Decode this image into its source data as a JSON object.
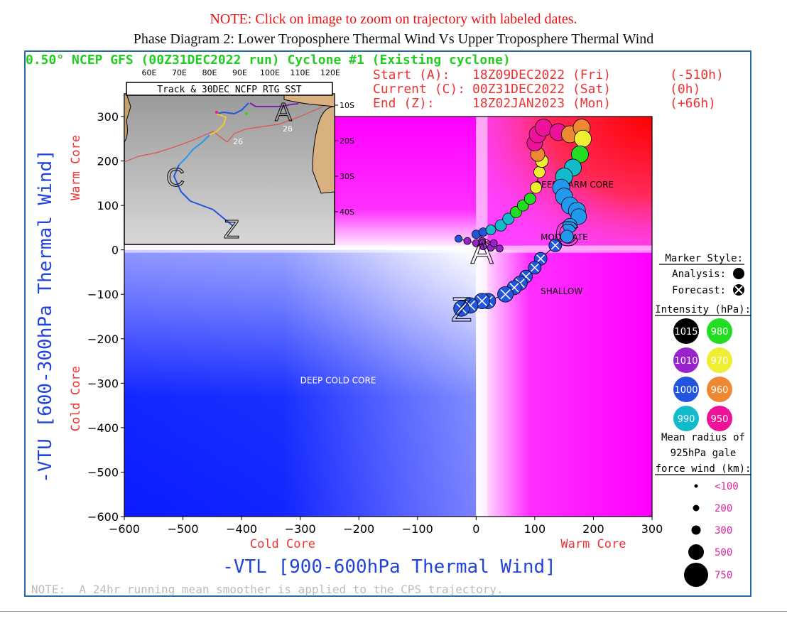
{
  "header": {
    "note": "NOTE: Click on image to zoom on trajectory with labeled dates.",
    "title": "Phase Diagram 2: Lower Troposphere Thermal Wind Vs Upper Troposphere Thermal Wind"
  },
  "run_line": "0.50° NCEP GFS (00Z31DEC2022 run) Cyclone #1 (Existing cyclone)",
  "times": [
    {
      "label": "Start (A):",
      "date": "18Z09DEC2022 (Fri)",
      "offset": "(-510h)"
    },
    {
      "label": "Current (C):",
      "date": "00Z31DEC2022 (Sat)",
      "offset": "(0h)"
    },
    {
      "label": "End (Z):",
      "date": "18Z02JAN2023 (Mon)",
      "offset": "(+66h)"
    }
  ],
  "inset": {
    "title": "Track & 30DEC NCFP RTG SST",
    "lon_labels": [
      "60E",
      "70E",
      "80E",
      "90E",
      "100E",
      "110E",
      "120E"
    ],
    "lat_labels": [
      "10S",
      "20S",
      "30S",
      "40S"
    ],
    "sst_labels": [
      "26",
      "26"
    ],
    "letters": [
      "A",
      "C",
      "Z"
    ]
  },
  "legend": {
    "marker_style_title": "Marker Style:",
    "analysis_label": "Analysis:",
    "forecast_label": "Forecast:",
    "intensity_title": "Intensity (hPa):",
    "intensity": [
      {
        "value": "1015",
        "color": "#000000"
      },
      {
        "value": "980",
        "color": "#22dd22"
      },
      {
        "value": "1010",
        "color": "#9922cc"
      },
      {
        "value": "970",
        "color": "#eeee33"
      },
      {
        "value": "1000",
        "color": "#2255dd"
      },
      {
        "value": "960",
        "color": "#ee8833"
      },
      {
        "value": "990",
        "color": "#11bbcc"
      },
      {
        "value": "950",
        "color": "#ee1199"
      }
    ],
    "radius_title_1": "Mean radius of",
    "radius_title_2": "925hPa gale",
    "radius_title_3": "force wind (km):",
    "radius": [
      "<100",
      "200",
      "300",
      "500",
      "750"
    ]
  },
  "footer_note": "NOTE:  A 24hr running mean smoother is applied to the CPS trajectory.",
  "chart_data": {
    "type": "scatter",
    "xlabel": "-VTL [900-600hPa Thermal Wind]",
    "ylabel": "-VTU [600-300hPa Thermal Wind]",
    "xlim": [
      -600,
      300
    ],
    "ylim": [
      -600,
      300
    ],
    "x_ticks": [
      -600,
      -500,
      -400,
      -300,
      -200,
      -100,
      0,
      100,
      200,
      300
    ],
    "y_ticks": [
      -600,
      -500,
      -400,
      -300,
      -200,
      -100,
      0,
      100,
      200,
      300
    ],
    "x_side_labels": [
      "Cold Core",
      "Warm Core"
    ],
    "y_side_labels": [
      "Cold Core",
      "Warm Core"
    ],
    "regions": [
      "DEEP WARM CORE",
      "MODERATE",
      "SHALLOW",
      "DEEP COLD CORE"
    ],
    "track_letters": [
      "A",
      "C",
      "Z"
    ],
    "trajectory": [
      {
        "x": -30,
        "y": 25,
        "r": 5,
        "c": "#2255dd",
        "t": "a"
      },
      {
        "x": -15,
        "y": 20,
        "r": 5,
        "c": "#9922cc",
        "t": "a"
      },
      {
        "x": 0,
        "y": 15,
        "r": 5,
        "c": "#9922cc",
        "t": "a"
      },
      {
        "x": 12,
        "y": 8,
        "r": 5,
        "c": "#9922cc",
        "t": "a"
      },
      {
        "x": 25,
        "y": 5,
        "r": 5,
        "c": "#9922cc",
        "t": "a"
      },
      {
        "x": 40,
        "y": 3,
        "r": 5,
        "c": "#9922cc",
        "t": "a"
      },
      {
        "x": 10,
        "y": 20,
        "r": 5,
        "c": "#9922cc",
        "t": "a"
      },
      {
        "x": 30,
        "y": 15,
        "r": 5,
        "c": "#9922cc",
        "t": "a"
      },
      {
        "x": 0,
        "y": 35,
        "r": 6,
        "c": "#2255dd",
        "t": "a"
      },
      {
        "x": 12,
        "y": 40,
        "r": 6,
        "c": "#2255dd",
        "t": "a"
      },
      {
        "x": 25,
        "y": 45,
        "r": 7,
        "c": "#11bbcc",
        "t": "a"
      },
      {
        "x": 42,
        "y": 55,
        "r": 8,
        "c": "#11bbcc",
        "t": "a"
      },
      {
        "x": 55,
        "y": 70,
        "r": 8,
        "c": "#11bbcc",
        "t": "a"
      },
      {
        "x": 68,
        "y": 85,
        "r": 8,
        "c": "#22dd22",
        "t": "a"
      },
      {
        "x": 80,
        "y": 100,
        "r": 8,
        "c": "#22dd22",
        "t": "a"
      },
      {
        "x": 92,
        "y": 115,
        "r": 8,
        "c": "#22dd22",
        "t": "a"
      },
      {
        "x": 102,
        "y": 140,
        "r": 8,
        "c": "#eeee33",
        "t": "a"
      },
      {
        "x": 108,
        "y": 175,
        "r": 8,
        "c": "#eeee33",
        "t": "a"
      },
      {
        "x": 112,
        "y": 200,
        "r": 9,
        "c": "#eeee33",
        "t": "a"
      },
      {
        "x": 105,
        "y": 215,
        "r": 10,
        "c": "#ee8833",
        "t": "a"
      },
      {
        "x": 100,
        "y": 240,
        "r": 11,
        "c": "#ee1199",
        "t": "a"
      },
      {
        "x": 105,
        "y": 260,
        "r": 12,
        "c": "#ee1199",
        "t": "a"
      },
      {
        "x": 115,
        "y": 275,
        "r": 12,
        "c": "#ee1199",
        "t": "a"
      },
      {
        "x": 140,
        "y": 265,
        "r": 12,
        "c": "#ee1199",
        "t": "a"
      },
      {
        "x": 160,
        "y": 260,
        "r": 12,
        "c": "#ee8833",
        "t": "a"
      },
      {
        "x": 180,
        "y": 275,
        "r": 12,
        "c": "#ee8833",
        "t": "a"
      },
      {
        "x": 182,
        "y": 250,
        "r": 12,
        "c": "#eeee33",
        "t": "a"
      },
      {
        "x": 177,
        "y": 215,
        "r": 12,
        "c": "#22dd22",
        "t": "a"
      },
      {
        "x": 165,
        "y": 185,
        "r": 12,
        "c": "#11bbcc",
        "t": "a"
      },
      {
        "x": 150,
        "y": 165,
        "r": 12,
        "c": "#11bbcc",
        "t": "a"
      },
      {
        "x": 145,
        "y": 140,
        "r": 12,
        "c": "#2299ee",
        "t": "a"
      },
      {
        "x": 150,
        "y": 120,
        "r": 12,
        "c": "#2299ee",
        "t": "a"
      },
      {
        "x": 160,
        "y": 100,
        "r": 12,
        "c": "#2299ee",
        "t": "a"
      },
      {
        "x": 172,
        "y": 88,
        "r": 12,
        "c": "#2299ee",
        "t": "a"
      },
      {
        "x": 175,
        "y": 75,
        "r": 11,
        "c": "#2299ee",
        "t": "a"
      },
      {
        "x": 160,
        "y": 55,
        "r": 10,
        "c": "#2299ee",
        "t": "a"
      },
      {
        "x": 155,
        "y": 30,
        "r": 9,
        "c": "#2299ee",
        "t": "a"
      },
      {
        "x": 135,
        "y": 10,
        "r": 9,
        "c": "#2255dd",
        "t": "f"
      },
      {
        "x": 110,
        "y": -20,
        "r": 9,
        "c": "#2255dd",
        "t": "f"
      },
      {
        "x": 100,
        "y": -40,
        "r": 9,
        "c": "#2255dd",
        "t": "f"
      },
      {
        "x": 85,
        "y": -60,
        "r": 9,
        "c": "#2255dd",
        "t": "f"
      },
      {
        "x": 75,
        "y": -75,
        "r": 10,
        "c": "#2255dd",
        "t": "f"
      },
      {
        "x": 65,
        "y": -85,
        "r": 10,
        "c": "#2255dd",
        "t": "f"
      },
      {
        "x": 50,
        "y": -100,
        "r": 11,
        "c": "#2255dd",
        "t": "f"
      },
      {
        "x": 20,
        "y": -115,
        "r": 11,
        "c": "#2255dd",
        "t": "f"
      },
      {
        "x": 10,
        "y": -115,
        "r": 11,
        "c": "#2255dd",
        "t": "f"
      },
      {
        "x": -10,
        "y": -125,
        "r": 11,
        "c": "#2255dd",
        "t": "f"
      },
      {
        "x": -25,
        "y": -132,
        "r": 11,
        "c": "#2255dd",
        "t": "f"
      }
    ]
  }
}
